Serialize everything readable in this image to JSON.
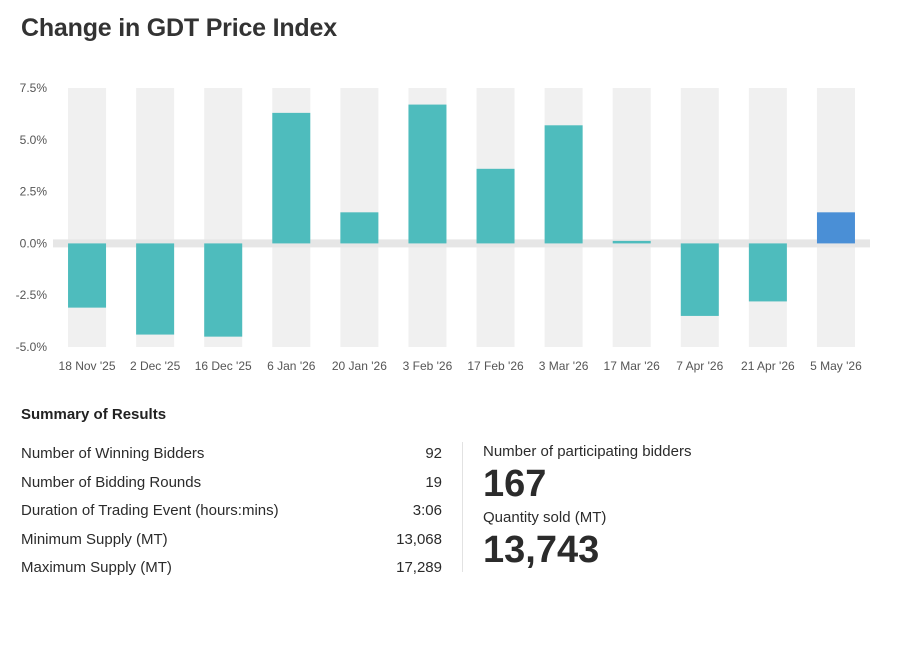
{
  "title": "Change in GDT Price Index",
  "chart_data": {
    "type": "bar",
    "categories": [
      "18 Nov '25",
      "2 Dec '25",
      "16 Dec '25",
      "6 Jan '26",
      "20 Jan '26",
      "3 Feb '26",
      "17 Feb '26",
      "3 Mar '26",
      "17 Mar '26",
      "7 Apr '26",
      "21 Apr '26",
      "5 May '26"
    ],
    "values": [
      -3.1,
      -4.4,
      -4.5,
      6.3,
      1.5,
      6.7,
      3.6,
      5.7,
      0.1,
      -3.5,
      -2.8,
      1.5
    ],
    "ylim": [
      -5.0,
      7.5
    ],
    "yticks": [
      "7.5%",
      "5.0%",
      "2.5%",
      "0.0%",
      "-2.5%",
      "-5.0%"
    ],
    "ytick_values": [
      7.5,
      5.0,
      2.5,
      0.0,
      -2.5,
      -5.0
    ],
    "colors": {
      "default": "#4ebcbd",
      "highlight": "#4a8fd6",
      "band": "#f0f0f0",
      "zero_line": "#e6e6e6"
    },
    "highlight_index": 11,
    "xlabel": "",
    "ylabel": ""
  },
  "summary": {
    "title": "Summary of Results",
    "rows": [
      {
        "label": "Number of Winning Bidders",
        "value": "92"
      },
      {
        "label": "Number of Bidding Rounds",
        "value": "19"
      },
      {
        "label": "Duration of Trading Event (hours:mins)",
        "value": "3:06"
      },
      {
        "label": "Minimum Supply (MT)",
        "value": "13,068"
      },
      {
        "label": "Maximum Supply (MT)",
        "value": "17,289"
      }
    ],
    "participating_label": "Number of participating bidders",
    "participating_value": "167",
    "quantity_label": "Quantity sold (MT)",
    "quantity_value": "13,743"
  }
}
